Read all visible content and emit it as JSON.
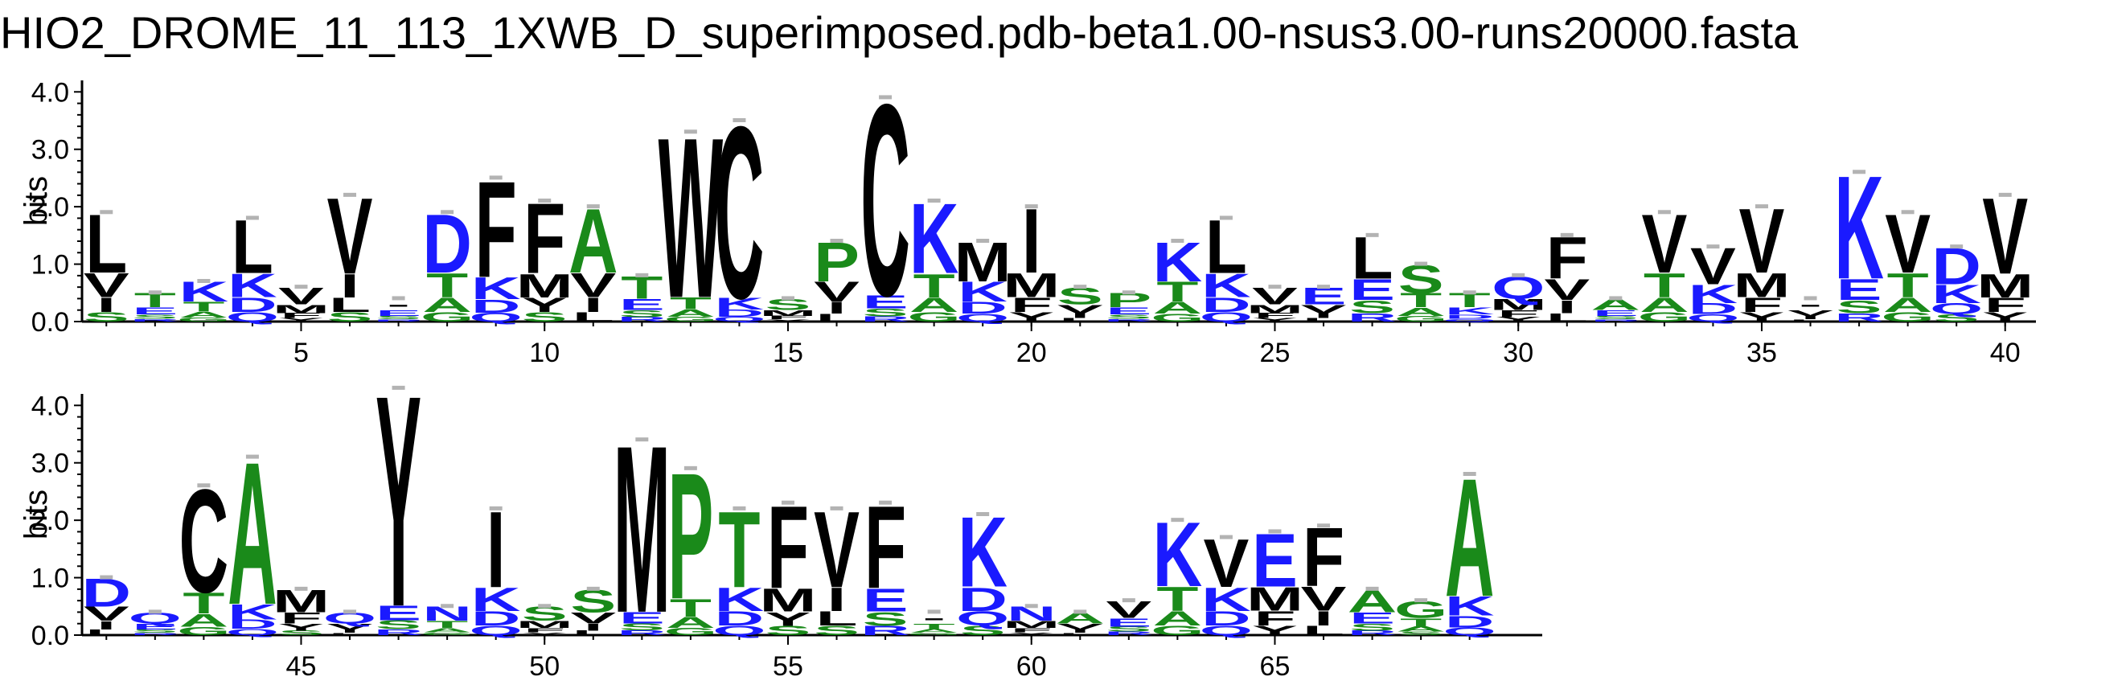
{
  "title": "HIO2_DROME_11_113_1XWB_D_superimposed.pdb-beta1.00-nsus3.00-runs20000.fasta",
  "colors": {
    "hydrophobic": "#000000",
    "polar": "#1a8a1a",
    "basic": "#1a1aff",
    "acidic": "#1a1aff",
    "error_bar": "#b3b3b3"
  },
  "chart_data": [
    {
      "type": "sequence-logo",
      "ylabel": "bits",
      "ylim": [
        0,
        4.2
      ],
      "yticks": [
        "0.0",
        "1.0",
        "2.0",
        "3.0",
        "4.0"
      ],
      "xticks": [
        5,
        10,
        15,
        20,
        25,
        30,
        35,
        40
      ],
      "positions": [
        {
          "pos": 1,
          "total": 1.9,
          "top": "L"
        },
        {
          "pos": 2,
          "total": 0.5,
          "top": "T"
        },
        {
          "pos": 3,
          "total": 0.7,
          "top": "K"
        },
        {
          "pos": 4,
          "total": 1.8,
          "top": "L"
        },
        {
          "pos": 5,
          "total": 0.6,
          "top": "V"
        },
        {
          "pos": 6,
          "total": 2.2,
          "top": "V"
        },
        {
          "pos": 7,
          "total": 0.4,
          "top": "-"
        },
        {
          "pos": 8,
          "total": 1.9,
          "top": "D"
        },
        {
          "pos": 9,
          "total": 2.5,
          "top": "F"
        },
        {
          "pos": 10,
          "total": 2.1,
          "top": "F"
        },
        {
          "pos": 11,
          "total": 2.0,
          "top": "A"
        },
        {
          "pos": 12,
          "total": 0.8,
          "top": "T"
        },
        {
          "pos": 13,
          "total": 3.3,
          "top": "W"
        },
        {
          "pos": 14,
          "total": 3.5,
          "top": "C"
        },
        {
          "pos": 15,
          "total": 0.4,
          "top": "S"
        },
        {
          "pos": 16,
          "total": 1.4,
          "top": "P"
        },
        {
          "pos": 17,
          "total": 3.9,
          "top": "C"
        },
        {
          "pos": 18,
          "total": 2.1,
          "top": "K"
        },
        {
          "pos": 19,
          "total": 1.4,
          "top": "M"
        },
        {
          "pos": 20,
          "total": 2.0,
          "top": "I"
        },
        {
          "pos": 21,
          "total": 0.6,
          "top": "S"
        },
        {
          "pos": 22,
          "total": 0.5,
          "top": "P"
        },
        {
          "pos": 23,
          "total": 1.4,
          "top": "K"
        },
        {
          "pos": 24,
          "total": 1.8,
          "top": "L"
        },
        {
          "pos": 25,
          "total": 0.6,
          "top": "V"
        },
        {
          "pos": 26,
          "total": 0.6,
          "top": "E"
        },
        {
          "pos": 27,
          "total": 1.5,
          "top": "L"
        },
        {
          "pos": 28,
          "total": 1.0,
          "top": "S"
        },
        {
          "pos": 29,
          "total": 0.5,
          "top": "T"
        },
        {
          "pos": 30,
          "total": 0.8,
          "top": "Q"
        },
        {
          "pos": 31,
          "total": 1.5,
          "top": "F"
        },
        {
          "pos": 32,
          "total": 0.4,
          "top": "A"
        },
        {
          "pos": 33,
          "total": 1.9,
          "top": "V"
        },
        {
          "pos": 34,
          "total": 1.3,
          "top": "V"
        },
        {
          "pos": 35,
          "total": 2.0,
          "top": "V"
        },
        {
          "pos": 36,
          "total": 0.4,
          "top": "-"
        },
        {
          "pos": 37,
          "total": 2.6,
          "top": "K"
        },
        {
          "pos": 38,
          "total": 1.9,
          "top": "V"
        },
        {
          "pos": 39,
          "total": 1.3,
          "top": "D"
        },
        {
          "pos": 40,
          "total": 2.2,
          "top": "V"
        }
      ]
    },
    {
      "type": "sequence-logo",
      "ylabel": "bits",
      "ylim": [
        0,
        4.2
      ],
      "yticks": [
        "0.0",
        "1.0",
        "2.0",
        "3.0",
        "4.0"
      ],
      "xticks": [
        45,
        50,
        55,
        60,
        65
      ],
      "positions": [
        {
          "pos": 41,
          "total": 1.0,
          "top": "D"
        },
        {
          "pos": 42,
          "total": 0.4,
          "top": "Q"
        },
        {
          "pos": 43,
          "total": 2.6,
          "top": "C"
        },
        {
          "pos": 44,
          "total": 3.1,
          "top": "A"
        },
        {
          "pos": 45,
          "total": 0.8,
          "top": "M"
        },
        {
          "pos": 46,
          "total": 0.4,
          "top": "Q"
        },
        {
          "pos": 47,
          "total": 4.3,
          "top": "Y"
        },
        {
          "pos": 48,
          "total": 0.5,
          "top": "N"
        },
        {
          "pos": 49,
          "total": 2.2,
          "top": "I"
        },
        {
          "pos": 50,
          "total": 0.5,
          "top": "S"
        },
        {
          "pos": 51,
          "total": 0.8,
          "top": "S"
        },
        {
          "pos": 52,
          "total": 3.4,
          "top": "M"
        },
        {
          "pos": 53,
          "total": 2.9,
          "top": "P"
        },
        {
          "pos": 54,
          "total": 2.2,
          "top": "T"
        },
        {
          "pos": 55,
          "total": 2.3,
          "top": "F"
        },
        {
          "pos": 56,
          "total": 2.2,
          "top": "V"
        },
        {
          "pos": 57,
          "total": 2.3,
          "top": "F"
        },
        {
          "pos": 58,
          "total": 0.4,
          "top": "-"
        },
        {
          "pos": 59,
          "total": 2.1,
          "top": "K"
        },
        {
          "pos": 60,
          "total": 0.5,
          "top": "N"
        },
        {
          "pos": 61,
          "total": 0.4,
          "top": "A"
        },
        {
          "pos": 62,
          "total": 0.6,
          "top": "V"
        },
        {
          "pos": 63,
          "total": 2.0,
          "top": "K"
        },
        {
          "pos": 64,
          "total": 1.7,
          "top": "V"
        },
        {
          "pos": 65,
          "total": 1.8,
          "top": "E"
        },
        {
          "pos": 66,
          "total": 1.9,
          "top": "F"
        },
        {
          "pos": 67,
          "total": 0.8,
          "top": "A"
        },
        {
          "pos": 68,
          "total": 0.6,
          "top": "G"
        },
        {
          "pos": 69,
          "total": 2.8,
          "top": "A"
        }
      ]
    }
  ]
}
